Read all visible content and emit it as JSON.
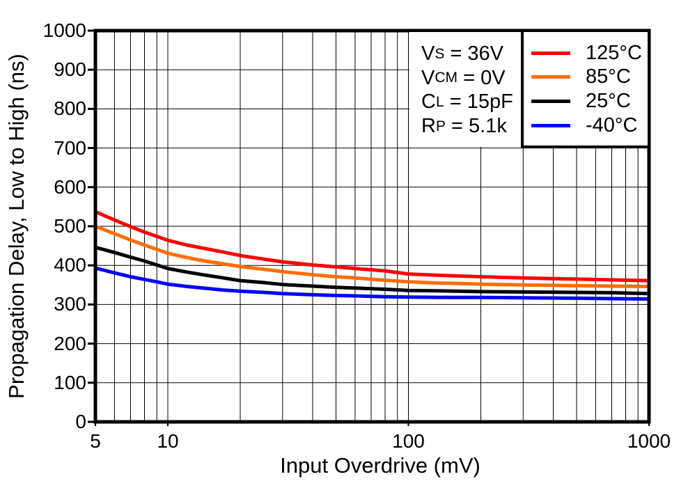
{
  "conditions": {
    "rows": [
      {
        "sym": "V",
        "sub": "S",
        "rest": " = 36V"
      },
      {
        "sym": "V",
        "sub": "CM",
        "rest": " = 0V"
      },
      {
        "sym": "C",
        "sub": "L",
        "rest": " = 15pF"
      },
      {
        "sym": "R",
        "sub": "P",
        "rest": " = 5.1k"
      }
    ]
  },
  "chart_data": {
    "type": "line",
    "title": "",
    "xlabel": "Input Overdrive (mV)",
    "ylabel": "Propagation Delay, Low to High (ns)",
    "x_scale": "log",
    "xlim": [
      5,
      1000
    ],
    "ylim": [
      0,
      1000
    ],
    "x_tick_labels": [
      5,
      10,
      100,
      1000
    ],
    "x_gridlines": [
      6,
      7,
      8,
      9,
      10,
      20,
      30,
      40,
      50,
      60,
      70,
      80,
      90,
      100,
      200,
      300,
      400,
      500,
      600,
      700,
      800,
      900
    ],
    "y_ticks": [
      0,
      100,
      200,
      300,
      400,
      500,
      600,
      700,
      800,
      900,
      1000
    ],
    "grid": true,
    "legend_position": "top-right",
    "axis_color": "#000000",
    "series": [
      {
        "name": "125°C",
        "color": "#ff0000",
        "points": [
          [
            5,
            537
          ],
          [
            6,
            516
          ],
          [
            7,
            499
          ],
          [
            8,
            485
          ],
          [
            9,
            474
          ],
          [
            10,
            464
          ],
          [
            12,
            452
          ],
          [
            14,
            444
          ],
          [
            17,
            434
          ],
          [
            20,
            425
          ],
          [
            25,
            416
          ],
          [
            30,
            409
          ],
          [
            40,
            401
          ],
          [
            50,
            396
          ],
          [
            60,
            392
          ],
          [
            80,
            386
          ],
          [
            100,
            378
          ],
          [
            130,
            375
          ],
          [
            160,
            373
          ],
          [
            200,
            371
          ],
          [
            300,
            368
          ],
          [
            400,
            366
          ],
          [
            500,
            365
          ],
          [
            700,
            363
          ],
          [
            1000,
            361
          ]
        ]
      },
      {
        "name": "85°C",
        "color": "#ff6d00",
        "points": [
          [
            5,
            500
          ],
          [
            6,
            481
          ],
          [
            7,
            465
          ],
          [
            8,
            452
          ],
          [
            9,
            441
          ],
          [
            10,
            431
          ],
          [
            12,
            420
          ],
          [
            14,
            412
          ],
          [
            17,
            404
          ],
          [
            20,
            397
          ],
          [
            25,
            390
          ],
          [
            30,
            384
          ],
          [
            40,
            376
          ],
          [
            50,
            371
          ],
          [
            60,
            368
          ],
          [
            80,
            362
          ],
          [
            100,
            358
          ],
          [
            130,
            355
          ],
          [
            160,
            354
          ],
          [
            200,
            352
          ],
          [
            300,
            350
          ],
          [
            400,
            349
          ],
          [
            500,
            348
          ],
          [
            700,
            347
          ],
          [
            1000,
            346
          ]
        ]
      },
      {
        "name": "25°C",
        "color": "#000000",
        "points": [
          [
            5,
            446
          ],
          [
            6,
            433
          ],
          [
            7,
            421
          ],
          [
            8,
            411
          ],
          [
            9,
            401
          ],
          [
            10,
            392
          ],
          [
            12,
            383
          ],
          [
            14,
            376
          ],
          [
            17,
            368
          ],
          [
            20,
            361
          ],
          [
            25,
            356
          ],
          [
            30,
            351
          ],
          [
            40,
            347
          ],
          [
            50,
            344
          ],
          [
            60,
            342
          ],
          [
            80,
            339
          ],
          [
            100,
            336
          ],
          [
            130,
            335
          ],
          [
            160,
            334
          ],
          [
            200,
            333
          ],
          [
            300,
            332
          ],
          [
            500,
            331
          ],
          [
            700,
            330
          ],
          [
            1000,
            328
          ]
        ]
      },
      {
        "name": "-40°C",
        "color": "#0000ff",
        "points": [
          [
            5,
            393
          ],
          [
            6,
            381
          ],
          [
            7,
            371
          ],
          [
            8,
            364
          ],
          [
            9,
            358
          ],
          [
            10,
            352
          ],
          [
            12,
            346
          ],
          [
            14,
            342
          ],
          [
            17,
            337
          ],
          [
            20,
            334
          ],
          [
            25,
            331
          ],
          [
            30,
            328
          ],
          [
            40,
            325
          ],
          [
            50,
            323
          ],
          [
            60,
            322
          ],
          [
            80,
            320
          ],
          [
            100,
            319
          ],
          [
            150,
            318
          ],
          [
            200,
            318
          ],
          [
            300,
            317
          ],
          [
            500,
            316
          ],
          [
            700,
            315
          ],
          [
            1000,
            314
          ]
        ]
      }
    ]
  }
}
